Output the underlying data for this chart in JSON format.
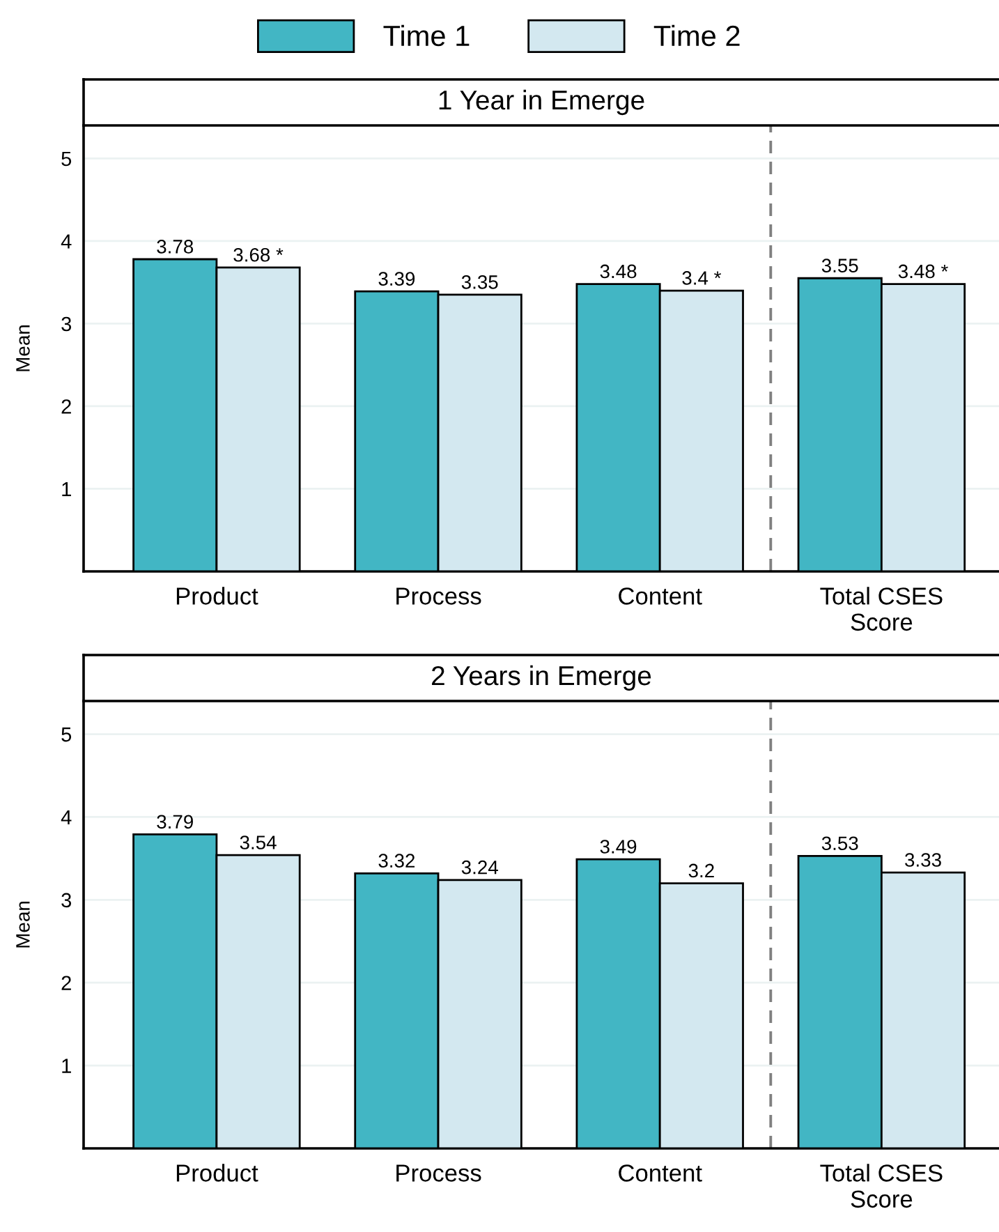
{
  "chart_data": [
    {
      "type": "bar",
      "title": "1 Year in Emerge",
      "ylabel": "Mean",
      "categories": [
        "Product",
        "Process",
        "Content",
        "Total CSES\nScore"
      ],
      "series": [
        {
          "name": "Time 1",
          "color": "#42b6c4",
          "values": [
            3.78,
            3.39,
            3.48,
            3.55
          ],
          "value_labels": [
            "3.78",
            "3.39",
            "3.48",
            "3.55"
          ]
        },
        {
          "name": "Time 2",
          "color": "#d3e8f0",
          "values": [
            3.68,
            3.35,
            3.4,
            3.48
          ],
          "value_labels": [
            "3.68 *",
            "3.35",
            "3.4 *",
            "3.48 *"
          ]
        }
      ],
      "ylim": [
        0,
        5.4
      ],
      "yticks": [
        1,
        2,
        3,
        4,
        5
      ],
      "grid": "y",
      "legend": "top"
    },
    {
      "type": "bar",
      "title": "2 Years in Emerge",
      "ylabel": "Mean",
      "categories": [
        "Product",
        "Process",
        "Content",
        "Total CSES\nScore"
      ],
      "series": [
        {
          "color": "#42b6c4",
          "values": [
            3.79,
            3.32,
            3.49,
            3.53
          ]
        },
        {
          "color": "#d3e8f0",
          "values": [
            3.54,
            3.24,
            3.2,
            3.33
          ]
        }
      ],
      "ylim": [
        0,
        5.4
      ],
      "yticks": [
        1,
        2,
        3,
        4,
        5
      ],
      "grid": "y",
      "data_labels": true
    }
  ]
}
